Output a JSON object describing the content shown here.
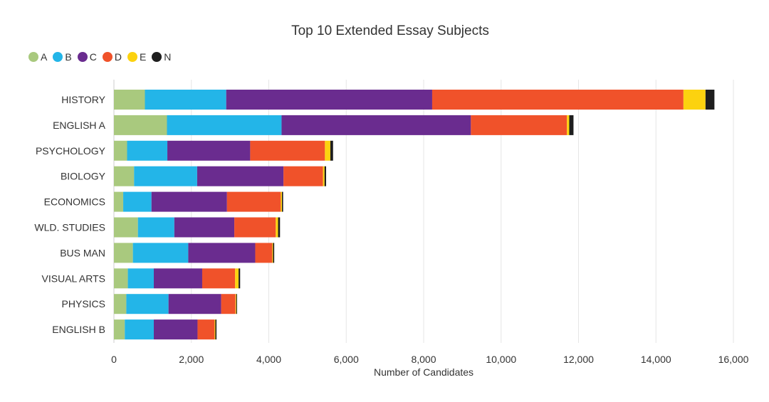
{
  "chart_data": {
    "type": "bar",
    "orientation": "horizontal",
    "stacked": true,
    "title": "Top 10 Extended Essay Subjects",
    "xlabel": "Number of Candidates",
    "ylabel": "",
    "xlim": [
      0,
      16000
    ],
    "xticks": [
      0,
      2000,
      4000,
      6000,
      8000,
      10000,
      12000,
      14000,
      16000
    ],
    "xtick_labels": [
      "0",
      "2,000",
      "4,000",
      "6,000",
      "8,000",
      "10,000",
      "12,000",
      "14,000",
      "16,000"
    ],
    "grid": "vertical",
    "legend_position": "top-left",
    "categories": [
      "HISTORY",
      "ENGLISH A",
      "PSYCHOLOGY",
      "BIOLOGY",
      "ECONOMICS",
      "WLD. STUDIES",
      "BUS MAN",
      "VISUAL ARTS",
      "PHYSICS",
      "ENGLISH B"
    ],
    "series": [
      {
        "name": "A",
        "color": "#a9c97e",
        "values": [
          800,
          1370,
          340,
          520,
          240,
          620,
          490,
          360,
          320,
          280
        ]
      },
      {
        "name": "B",
        "color": "#23b5e8",
        "values": [
          2100,
          2960,
          1040,
          1630,
          730,
          940,
          1430,
          670,
          1090,
          750
        ]
      },
      {
        "name": "C",
        "color": "#6a2c8f",
        "values": [
          5320,
          4890,
          2140,
          2230,
          1950,
          1550,
          1730,
          1250,
          1360,
          1130
        ]
      },
      {
        "name": "D",
        "color": "#f0522a",
        "values": [
          6490,
          2480,
          1930,
          1020,
          1390,
          1070,
          440,
          850,
          370,
          440
        ]
      },
      {
        "name": "E",
        "color": "#fcd20f",
        "values": [
          570,
          60,
          140,
          40,
          30,
          60,
          20,
          90,
          20,
          20
        ]
      },
      {
        "name": "N",
        "color": "#1e1e1e",
        "values": [
          230,
          110,
          70,
          40,
          30,
          50,
          30,
          40,
          20,
          30
        ]
      }
    ]
  }
}
